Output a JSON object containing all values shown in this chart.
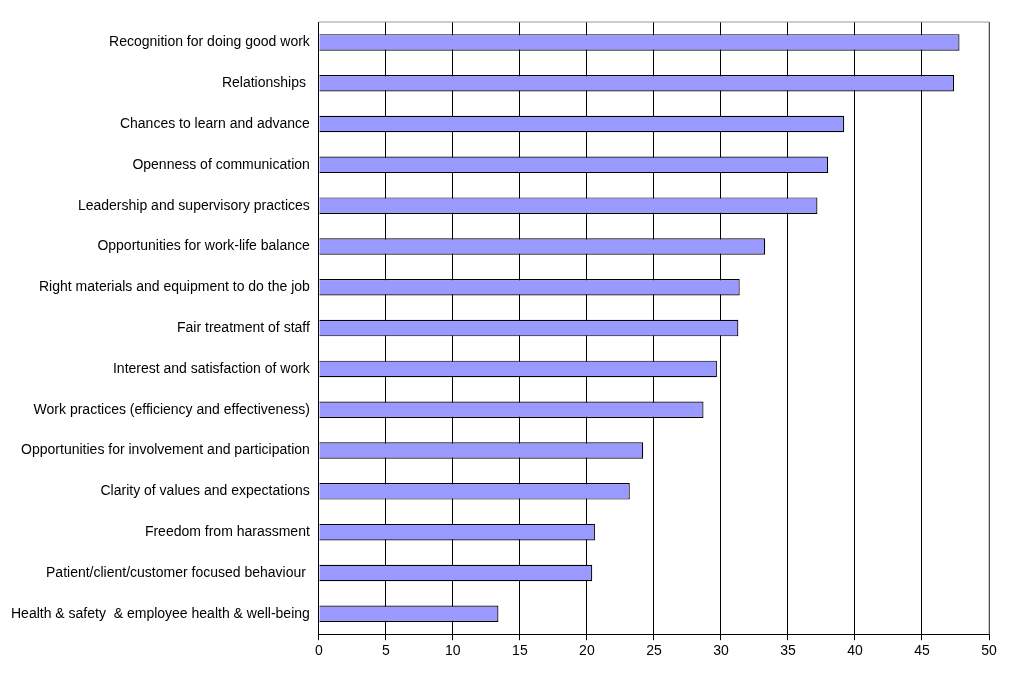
{
  "chart_data": {
    "type": "bar",
    "orientation": "horizontal",
    "categories": [
      "Recognition for doing good work",
      "Relationships ",
      "Chances to learn and advance",
      "Openness of communication",
      "Leadership and supervisory practices",
      "Opportunities for work-life balance",
      "Right materials and equipment to do the job",
      "Fair treatment of staff",
      "Interest and satisfaction of work",
      "Work practices (efficiency and effectiveness)",
      "Opportunities for involvement and participation",
      "Clarity of values and expectations",
      "Freedom from harassment",
      "Patient/client/customer focused behaviour ",
      "Health & safety  & employee health & well-being"
    ],
    "values": [
      47.8,
      47.4,
      39.2,
      38.0,
      37.2,
      33.3,
      31.4,
      31.3,
      29.7,
      28.7,
      24.2,
      23.2,
      20.6,
      20.4,
      13.4
    ],
    "color": "#9999ff",
    "xlim": [
      0,
      50
    ],
    "xticks": [
      0,
      5,
      10,
      15,
      20,
      25,
      30,
      35,
      40,
      45,
      50
    ],
    "grid": "x"
  }
}
